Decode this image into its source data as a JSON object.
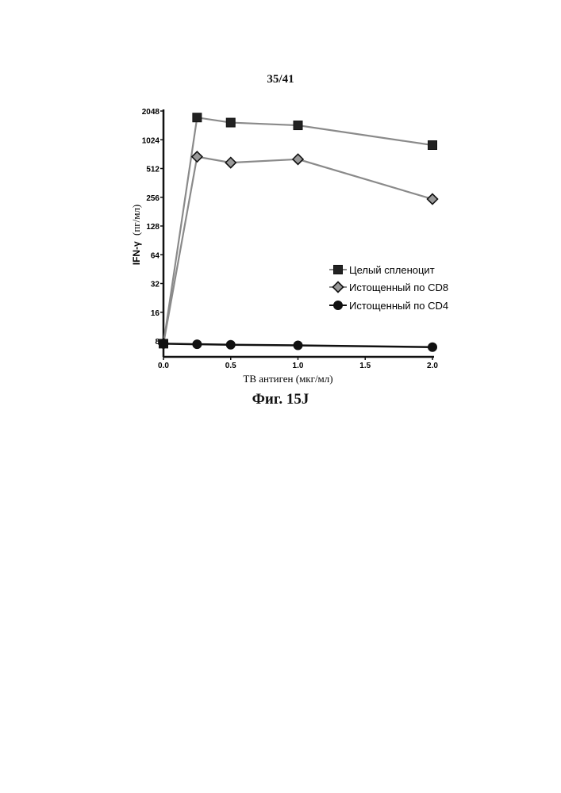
{
  "page": {
    "number": "35/41",
    "caption": "Фиг. 15J"
  },
  "chart_data": {
    "type": "line",
    "title": "",
    "xlabel": "TB антиген (мкг/мл)",
    "ylabel_prefix": "IFN-γ",
    "ylabel_unit": "(пг/мл)",
    "x_ticks": [
      "0.0",
      "0.5",
      "1.0",
      "1.5",
      "2.0"
    ],
    "x_tick_values": [
      0,
      0.5,
      1.0,
      1.5,
      2.0
    ],
    "y_ticks": [
      "8",
      "16",
      "32",
      "64",
      "128",
      "256",
      "512",
      "1024",
      "2048"
    ],
    "y_tick_values": [
      8,
      16,
      32,
      64,
      128,
      256,
      512,
      1024,
      2048
    ],
    "y_scale": "log2",
    "xlim": [
      0,
      2.0
    ],
    "ylim": [
      6,
      2048
    ],
    "legend_position": "center-right",
    "series": [
      {
        "name": "Целый спленоцит",
        "marker": "square",
        "color": "#555555",
        "x": [
          0,
          0.25,
          0.5,
          1.0,
          2.0
        ],
        "y": [
          7.5,
          1750,
          1550,
          1450,
          900
        ]
      },
      {
        "name": "Истощенный по CD8",
        "marker": "diamond",
        "color": "#666666",
        "x": [
          0,
          0.25,
          0.5,
          1.0,
          2.0
        ],
        "y": [
          7.5,
          680,
          590,
          640,
          245
        ]
      },
      {
        "name": "Истощенный по CD4",
        "marker": "circle",
        "color": "#111111",
        "x": [
          0,
          0.25,
          0.5,
          1.0,
          2.0
        ],
        "y": [
          7.5,
          7.4,
          7.3,
          7.2,
          6.9
        ]
      }
    ]
  }
}
